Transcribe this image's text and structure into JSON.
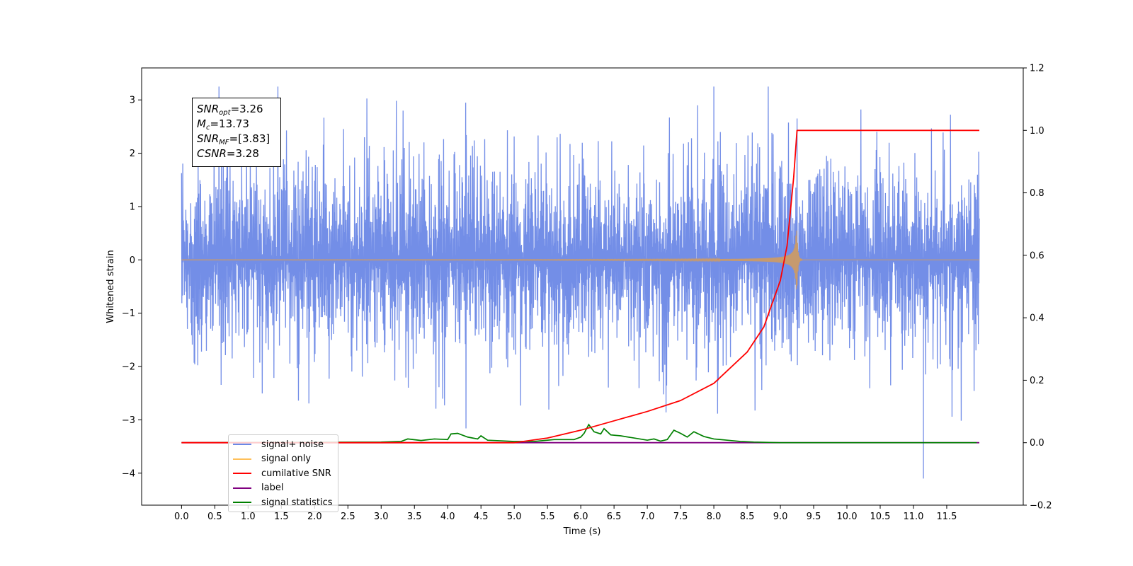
{
  "chart_data": {
    "type": "line",
    "title": "",
    "xlabel": "Time (s)",
    "ylabel": "Whitened strain",
    "ylabel_right": "",
    "xlim": [
      -0.6,
      12.65
    ],
    "ylim": [
      -4.6,
      3.6
    ],
    "ylim_right": [
      -0.2,
      1.2
    ],
    "x_ticks": [
      "0.0",
      "0.5",
      "1.0",
      "1.5",
      "2.0",
      "2.5",
      "3.0",
      "3.5",
      "4.0",
      "4.5",
      "5.0",
      "5.5",
      "6.0",
      "6.5",
      "7.0",
      "7.5",
      "8.0",
      "8.5",
      "9.0",
      "9.5",
      "10.0",
      "10.5",
      "11.0",
      "11.5"
    ],
    "y_ticks": [
      "3",
      "2",
      "1",
      "0",
      "−1",
      "−2",
      "−3",
      "−4"
    ],
    "y_ticks_right": [
      "1.2",
      "1.0",
      "0.8",
      "0.6",
      "0.4",
      "0.2",
      "0.0",
      "−0.2"
    ],
    "legend_placement": "lower-left",
    "grid": false,
    "annotation": {
      "snr_opt_symbol": "SNR",
      "snr_opt_sub": "opt",
      "snr_opt_value": "=3.26",
      "mc_symbol": "M",
      "mc_sub": "c",
      "mc_value": "=13.73",
      "snr_mf_symbol": "SNR",
      "snr_mf_sub": "MF",
      "snr_mf_value": "=[3.83]",
      "csnr_symbol": "CSNR",
      "csnr_value": "=3.28"
    },
    "series": [
      {
        "name": "signal+ noise",
        "color": "#6b88e6",
        "axis": "left",
        "description_values": {
          "x_start": 0.0,
          "x_end": 11.99,
          "typical_range": [
            -2.0,
            2.0
          ],
          "max": 3.25,
          "min": -4.1,
          "max_x": 8.0,
          "min_x": 11.15
        }
      },
      {
        "name": "signal only",
        "color": "#ffc05a",
        "axis": "left",
        "chirp": {
          "x_start": 0.0,
          "merger_x": 9.25,
          "x_end": 11.99,
          "peak_amplitude": 0.55
        }
      },
      {
        "name": "cumilative SNR",
        "color": "#ff0000",
        "axis": "right",
        "x": [
          0.0,
          5.0,
          5.5,
          6.0,
          6.5,
          7.0,
          7.5,
          8.0,
          8.5,
          8.75,
          9.0,
          9.1,
          9.2,
          9.25,
          11.99
        ],
        "values": [
          0.0,
          0.0,
          0.015,
          0.04,
          0.07,
          0.1,
          0.135,
          0.19,
          0.29,
          0.37,
          0.52,
          0.63,
          0.85,
          1.0,
          1.0
        ]
      },
      {
        "name": "label",
        "color": "#800080",
        "axis": "right",
        "x": [
          0.0,
          11.99
        ],
        "values": [
          0.0,
          0.0
        ]
      },
      {
        "name": "signal statistics",
        "color": "#008000",
        "axis": "right",
        "x": [
          0.0,
          3.0,
          3.3,
          3.4,
          3.6,
          3.8,
          4.0,
          4.05,
          4.15,
          4.3,
          4.45,
          4.5,
          4.6,
          4.8,
          5.0,
          5.3,
          5.6,
          5.9,
          6.0,
          6.05,
          6.12,
          6.2,
          6.3,
          6.35,
          6.45,
          6.6,
          6.8,
          7.0,
          7.1,
          7.2,
          7.3,
          7.4,
          7.5,
          7.6,
          7.7,
          7.85,
          8.0,
          8.2,
          8.4,
          8.6,
          9.0,
          11.95
        ],
        "values": [
          0.0,
          0.002,
          0.004,
          0.012,
          0.007,
          0.012,
          0.01,
          0.028,
          0.03,
          0.018,
          0.012,
          0.022,
          0.008,
          0.006,
          0.004,
          0.004,
          0.01,
          0.01,
          0.018,
          0.03,
          0.058,
          0.035,
          0.028,
          0.045,
          0.025,
          0.022,
          0.015,
          0.008,
          0.012,
          0.005,
          0.01,
          0.04,
          0.03,
          0.018,
          0.035,
          0.02,
          0.012,
          0.008,
          0.004,
          0.002,
          0.0,
          0.0
        ]
      }
    ]
  },
  "legend": {
    "items": [
      {
        "label": "signal+ noise",
        "color": "#6b88e6"
      },
      {
        "label": "signal only",
        "color": "#ffc05a"
      },
      {
        "label": "cumilative SNR",
        "color": "#ff0000"
      },
      {
        "label": "label",
        "color": "#800080"
      },
      {
        "label": "signal statistics",
        "color": "#008000"
      }
    ]
  }
}
